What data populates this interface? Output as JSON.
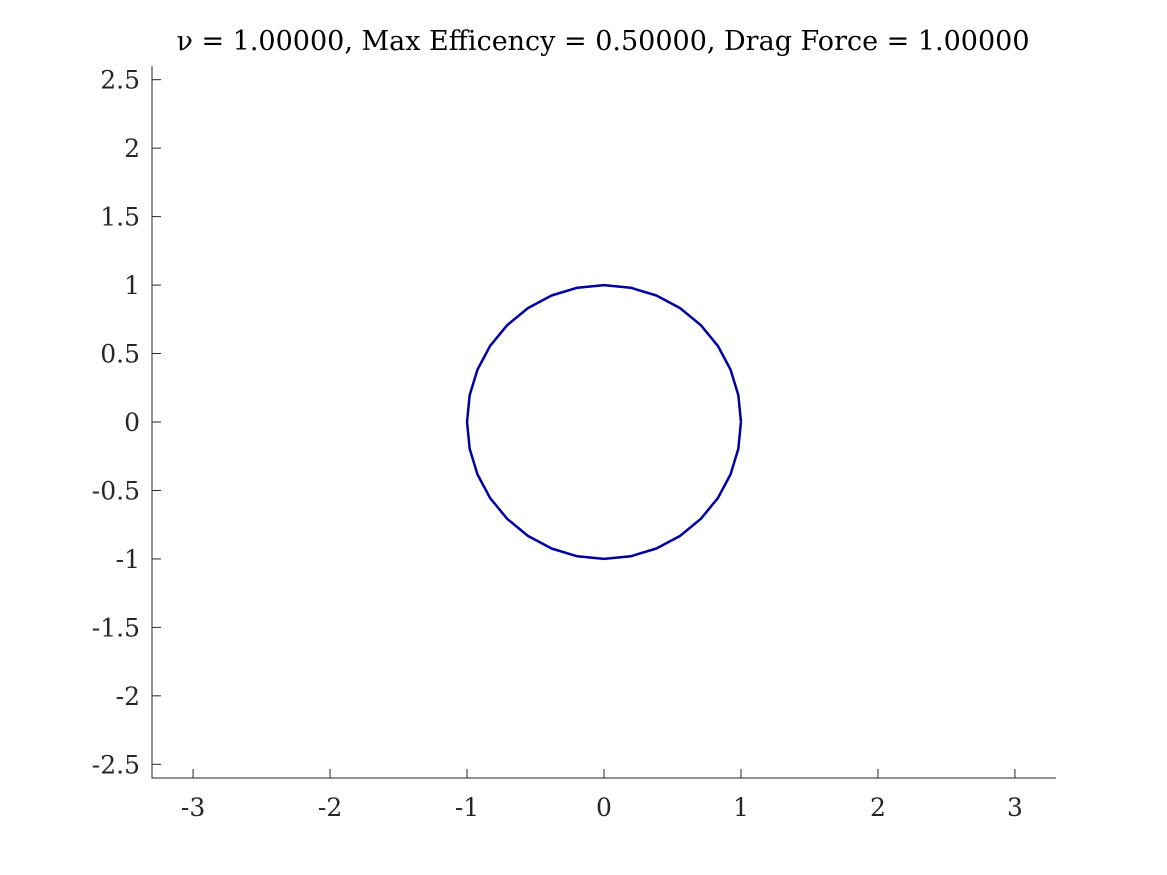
{
  "chart_data": {
    "type": "line",
    "title": "ν = 1.00000, Max Efficency = 0.50000, Drag Force = 1.00000",
    "xlabel": "",
    "ylabel": "",
    "xlim": [
      -3.3,
      3.3
    ],
    "ylim": [
      -2.6,
      2.6
    ],
    "x_ticks": [
      {
        "value": -3,
        "label": "-3"
      },
      {
        "value": -2,
        "label": "-2"
      },
      {
        "value": -1,
        "label": "-1"
      },
      {
        "value": 0,
        "label": "0"
      },
      {
        "value": 1,
        "label": "1"
      },
      {
        "value": 2,
        "label": "2"
      },
      {
        "value": 3,
        "label": "3"
      }
    ],
    "y_ticks": [
      {
        "value": 2.5,
        "label": "2.5"
      },
      {
        "value": 2,
        "label": "2"
      },
      {
        "value": 1.5,
        "label": "1.5"
      },
      {
        "value": 1,
        "label": "1"
      },
      {
        "value": 0.5,
        "label": "0.5"
      },
      {
        "value": 0,
        "label": "0"
      },
      {
        "value": -0.5,
        "label": "-0.5"
      },
      {
        "value": -1,
        "label": "-1"
      },
      {
        "value": -1.5,
        "label": "-1.5"
      },
      {
        "value": -2,
        "label": "-2"
      },
      {
        "value": -2.5,
        "label": "-2.5"
      }
    ],
    "grid": false,
    "legend": "none",
    "series": [
      {
        "color": "#0000a0",
        "x": [
          1,
          0.9808,
          0.9239,
          0.8315,
          0.7071,
          0.5556,
          0.3827,
          0.1951,
          0,
          -0.1951,
          -0.3827,
          -0.5556,
          -0.7071,
          -0.8315,
          -0.9239,
          -0.9808,
          -1,
          -0.9808,
          -0.9239,
          -0.8315,
          -0.7071,
          -0.5556,
          -0.3827,
          -0.1951,
          0,
          0.1951,
          0.3827,
          0.5556,
          0.7071,
          0.8315,
          0.9239,
          0.9808,
          1
        ],
        "y": [
          0,
          0.1951,
          0.3827,
          0.5556,
          0.7071,
          0.8315,
          0.9239,
          0.9808,
          1,
          0.9808,
          0.9239,
          0.8315,
          0.7071,
          0.5556,
          0.3827,
          0.1951,
          0,
          -0.1951,
          -0.3827,
          -0.5556,
          -0.7071,
          -0.8315,
          -0.9239,
          -0.9808,
          -1,
          -0.9808,
          -0.9239,
          -0.8315,
          -0.7071,
          -0.5556,
          -0.3827,
          -0.1951,
          0
        ]
      }
    ]
  }
}
